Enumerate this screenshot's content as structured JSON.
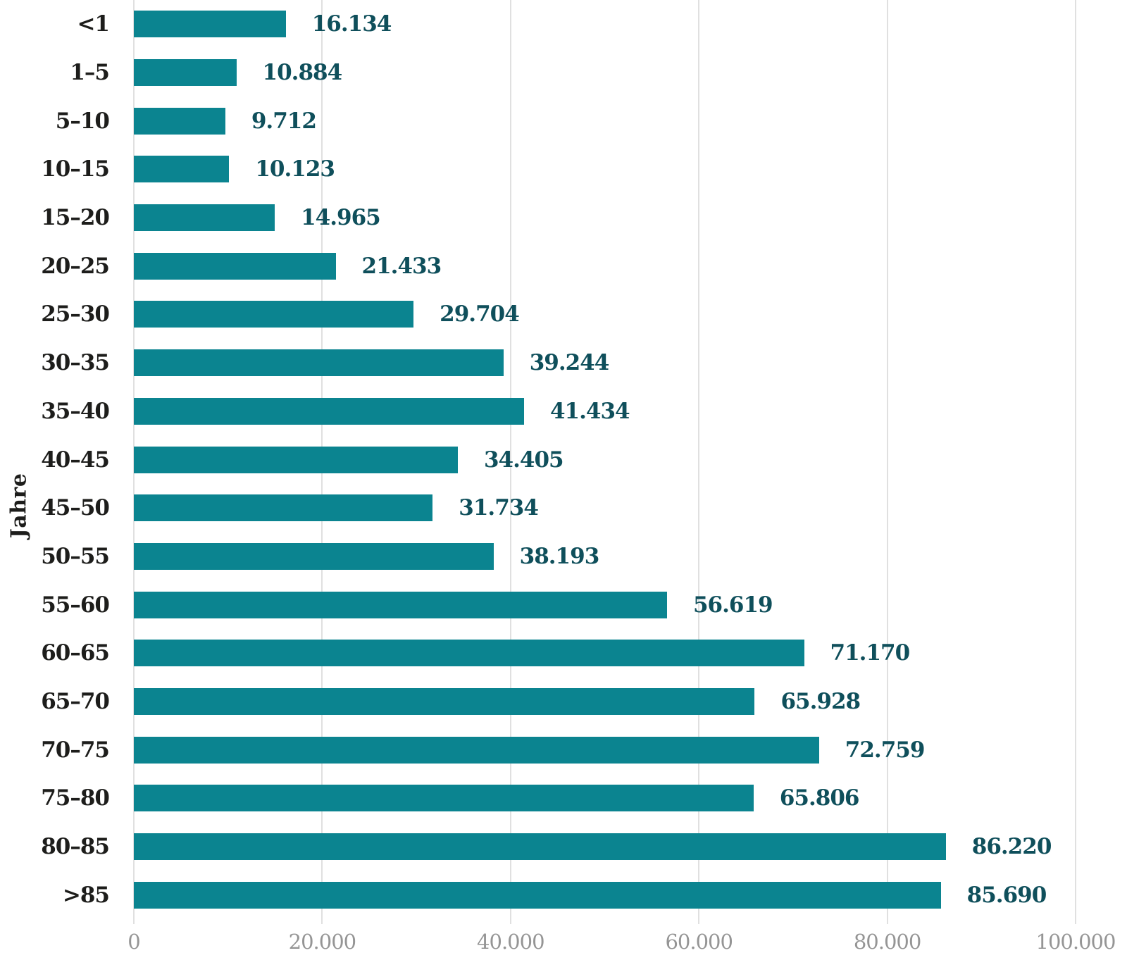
{
  "chart_data": {
    "type": "bar",
    "orientation": "horizontal",
    "title": "",
    "xlabel": "",
    "ylabel": "Jahre",
    "categories": [
      "<1",
      "1–5",
      "5–10",
      "10–15",
      "15–20",
      "20–25",
      "25–30",
      "30–35",
      "35–40",
      "40–45",
      "45–50",
      "50–55",
      "55–60",
      "60–65",
      "65–70",
      "70–75",
      "75–80",
      "80–85",
      ">85"
    ],
    "values": [
      16134,
      10884,
      9712,
      10123,
      14965,
      21433,
      29704,
      39244,
      41434,
      34405,
      31734,
      38193,
      56619,
      71170,
      65928,
      72759,
      65806,
      86220,
      85690
    ],
    "value_labels": [
      "16.134",
      "10.884",
      "9.712",
      "10.123",
      "14.965",
      "21.433",
      "29.704",
      "39.244",
      "41.434",
      "34.405",
      "31.734",
      "38.193",
      "56.619",
      "71.170",
      "65.928",
      "72.759",
      "65.806",
      "86.220",
      "85.690"
    ],
    "xlim": [
      0,
      100000
    ],
    "x_tick_values": [
      0,
      20000,
      40000,
      60000,
      80000,
      100000
    ],
    "x_tick_labels": [
      "0",
      "20.000",
      "40.000",
      "60.000",
      "80.000",
      "100.000"
    ],
    "grid": true,
    "legend": "none"
  },
  "style": {
    "bar_color": "#0b8490",
    "value_label_color": "#0f4f5b",
    "category_label_color": "#1d1d1b",
    "tick_label_color": "#959595",
    "gridline_color": "#e0e0e0",
    "ylabel_color": "#1d1d1b"
  }
}
